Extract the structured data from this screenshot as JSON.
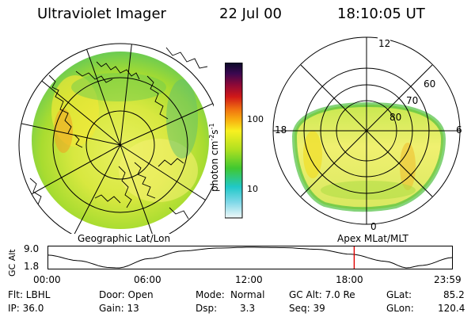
{
  "header": {
    "title": "Ultraviolet Imager",
    "date": "22 Jul 00",
    "time": "18:10:05 UT"
  },
  "colorbar": {
    "unit_label": "photon cm",
    "unit_sup1": "-2",
    "unit_mid": "s",
    "unit_sup2": "-1",
    "tick_100": "100",
    "tick_10": "10"
  },
  "left_panel": {
    "label": "Geographic Lat/Lon"
  },
  "right_panel": {
    "label": "Apex MLat/MLT",
    "mlt_12": "12",
    "mlt_18": "18",
    "mlt_6": "6",
    "mlt_0": "0",
    "mlat_60": "60",
    "mlat_70": "70",
    "mlat_80": "80"
  },
  "altitude_plot": {
    "y_axis_label": "GC Alt",
    "y_max": "9.0",
    "y_min": "1.8",
    "x_ticks": [
      "00:00",
      "06:00",
      "12:00",
      "18:00",
      "23:59"
    ],
    "current_hour": 18.17,
    "marker_color": "#e00000"
  },
  "status": {
    "filter_label": "Flt: LBHL",
    "ip_label": "IP: 36.0",
    "door_label": "Door: Open",
    "gain_label": "Gain: 13",
    "mode_label": "Mode:",
    "mode_value": "Normal",
    "dsp_label": "Dsp:",
    "dsp_value": "3.3",
    "gcalt_label": "GC Alt: 7.0 Re",
    "seq_label": "Seq: 39",
    "glat_label": "GLat:",
    "glat_value": "85.2",
    "glon_label": "GLon:",
    "glon_value": "120.4"
  }
}
